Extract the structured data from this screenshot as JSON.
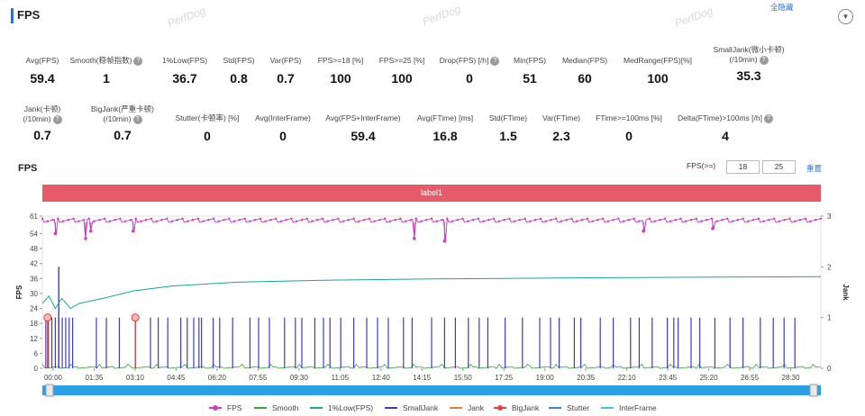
{
  "header": {
    "title": "FPS",
    "watermark": "PerfDog"
  },
  "stats_row1": [
    {
      "label": "Avg(FPS)",
      "value": "59.4",
      "help": false
    },
    {
      "label": "Smooth(稳帧指数)",
      "value": "1",
      "help": true
    },
    {
      "label": "1%Low(FPS)",
      "value": "36.7",
      "help": false
    },
    {
      "label": "Std(FPS)",
      "value": "0.8",
      "help": false
    },
    {
      "label": "Var(FPS)",
      "value": "0.7",
      "help": false
    },
    {
      "label": "FPS>=18 [%]",
      "value": "100",
      "help": false
    },
    {
      "label": "FPS>=25 [%]",
      "value": "100",
      "help": false
    },
    {
      "label": "Drop(FPS) [/h]",
      "value": "0",
      "help": true
    },
    {
      "label": "Min(FPS)",
      "value": "51",
      "help": false
    },
    {
      "label": "Median(FPS)",
      "value": "60",
      "help": false
    },
    {
      "label": "MedRange(FPS)[%]",
      "value": "100",
      "help": false
    },
    {
      "label": "SmallJank(微小卡顿)",
      "label2": "(/10min)",
      "value": "35.3",
      "help": true
    }
  ],
  "stats_row2": [
    {
      "label": "Jank(卡顿)",
      "label2": "(/10min)",
      "value": "0.7",
      "help": true
    },
    {
      "label": "BigJank(严重卡顿)",
      "label2": "(/10min)",
      "value": "0.7",
      "help": true
    },
    {
      "label": "Stutter(卡顿率) [%]",
      "value": "0",
      "help": false
    },
    {
      "label": "Avg(InterFrame)",
      "value": "0",
      "help": false
    },
    {
      "label": "Avg(FPS+InterFrame)",
      "value": "59.4",
      "help": false
    },
    {
      "label": "Avg(FTime) [ms]",
      "value": "16.8",
      "help": false
    },
    {
      "label": "Std(FTime)",
      "value": "1.5",
      "help": false
    },
    {
      "label": "Var(FTime)",
      "value": "2.3",
      "help": false
    },
    {
      "label": "FTime>=100ms [%]",
      "value": "0",
      "help": false
    },
    {
      "label": "Delta(FTime)>100ms [/h]",
      "value": "4",
      "help": true
    }
  ],
  "controls": {
    "chart_title": "FPS",
    "fps_threshold_label": "FPS(>=)",
    "threshold_1": "18",
    "threshold_2": "25",
    "reset_label": "重置",
    "band_label": "label1",
    "hide_all_label": "全隐藏",
    "help_icon_text": "?",
    "collapse_icon_text": "▼"
  },
  "chart_data": {
    "type": "line",
    "ylabel": "FPS",
    "y2label": "Jank",
    "y_ticks": [
      "61",
      "54",
      "48",
      "42",
      "36",
      "30",
      "24",
      "18",
      "12",
      "6",
      "0"
    ],
    "y2_ticks": [
      "3",
      "2",
      "1",
      "0"
    ],
    "x_ticks": [
      "00:00",
      "01:35",
      "03:10",
      "04:45",
      "06:20",
      "07:55",
      "09:30",
      "11:05",
      "12:40",
      "14:15",
      "15:50",
      "17:25",
      "19:00",
      "20:35",
      "22:10",
      "23:45",
      "25:20",
      "26:55",
      "28:30"
    ],
    "ylim": [
      0,
      61
    ],
    "y2lim": [
      0,
      3
    ],
    "duration_s": 1800,
    "fps_mean": 59.4,
    "fps_dips": [
      {
        "t": 30,
        "v": 54
      },
      {
        "t": 100,
        "v": 52
      },
      {
        "t": 112,
        "v": 55
      },
      {
        "t": 210,
        "v": 55
      },
      {
        "t": 860,
        "v": 52
      },
      {
        "t": 930,
        "v": 51
      },
      {
        "t": 1390,
        "v": 55
      },
      {
        "t": 1550,
        "v": 56
      }
    ],
    "low1_series": [
      {
        "t": 0,
        "v": 26
      },
      {
        "t": 15,
        "v": 29
      },
      {
        "t": 30,
        "v": 24
      },
      {
        "t": 45,
        "v": 28
      },
      {
        "t": 65,
        "v": 24
      },
      {
        "t": 85,
        "v": 26
      },
      {
        "t": 140,
        "v": 28
      },
      {
        "t": 210,
        "v": 31
      },
      {
        "t": 300,
        "v": 33
      },
      {
        "t": 450,
        "v": 34.5
      },
      {
        "t": 650,
        "v": 35.3
      },
      {
        "t": 900,
        "v": 35.8
      },
      {
        "t": 1200,
        "v": 36.2
      },
      {
        "t": 1500,
        "v": 36.5
      },
      {
        "t": 1800,
        "v": 36.7
      }
    ],
    "small_jank_times": [
      8,
      14,
      22,
      30,
      38,
      46,
      54,
      62,
      70,
      125,
      148,
      178,
      215,
      250,
      268,
      290,
      320,
      335,
      350,
      362,
      368,
      395,
      410,
      440,
      480,
      500,
      525,
      560,
      585,
      600,
      630,
      650,
      665,
      690,
      720,
      750,
      775,
      800,
      835,
      855,
      900,
      930,
      955,
      985,
      1010,
      1030,
      1070,
      1110,
      1150,
      1175,
      1195,
      1230,
      1245,
      1290,
      1320,
      1360,
      1380,
      1410,
      1445,
      1460,
      1470,
      1500,
      1520,
      1555,
      1590,
      1620,
      1660,
      1690,
      1715,
      1740
    ],
    "big_jank": [
      {
        "t": 12,
        "v": 1
      },
      {
        "t": 215,
        "v": 1
      }
    ],
    "tall_spike": {
      "t": 38,
      "v": 2.0
    },
    "series_names": [
      "FPS",
      "Smooth",
      "1%Low(FPS)",
      "SmallJank",
      "Jank",
      "BigJank",
      "Stutter",
      "InterFrame"
    ],
    "colors": {
      "FPS": "#c93fc2",
      "Smooth": "#3aa53a",
      "1%Low(FPS)": "#1aa39a",
      "SmallJank": "#3f3cc2",
      "Jank": "#e87d2b",
      "BigJank": "#e0443f",
      "Stutter": "#3f7fd6",
      "InterFrame": "#3fc6d6"
    }
  }
}
